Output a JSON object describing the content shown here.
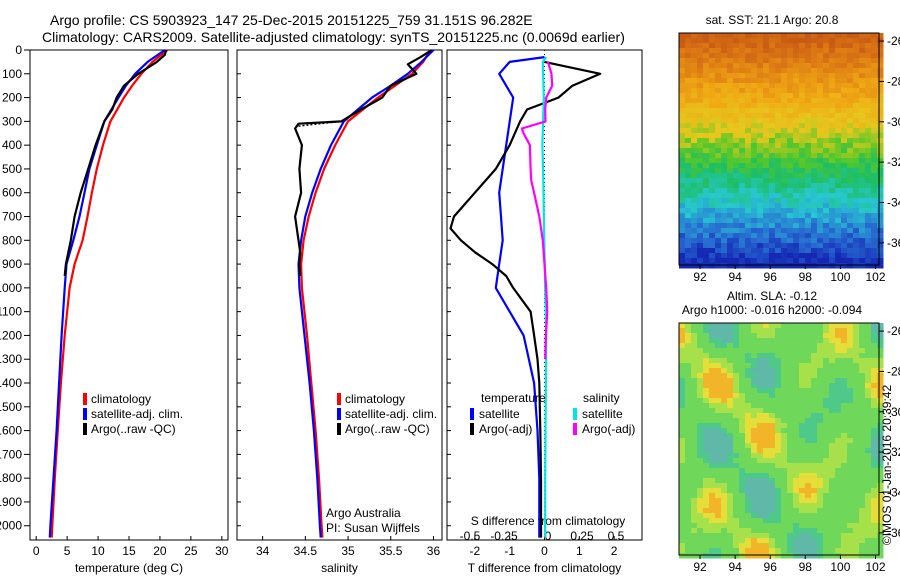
{
  "header": {
    "line1": "Argo profile: CS 5903923_147 25-Dec-2015 20151225_759 31.151S 96.282E",
    "line2": "Climatology: CARS2009. Satellite-adjusted climatology: synTS_20151225.nc (0.0069d earlier)"
  },
  "depth_ticks": [
    0,
    100,
    200,
    300,
    400,
    500,
    600,
    700,
    800,
    900,
    1000,
    1100,
    1200,
    1300,
    1400,
    1500,
    1600,
    1700,
    1800,
    1900,
    2000
  ],
  "colors": {
    "climatology": "#ff0000",
    "satellite": "#0000ff",
    "argo": "#000000",
    "sat_salinity": "#00e5e5",
    "argo_salinity": "#ff00ff"
  },
  "panels": {
    "temperature": {
      "xlabel": "temperature (deg C)",
      "xlim": [
        -1,
        31
      ],
      "xticks": [
        0,
        5,
        10,
        15,
        20,
        25,
        30
      ],
      "legend": [
        "climatology",
        "satellite-adj. clim.",
        "Argo(..raw -QC)"
      ]
    },
    "salinity": {
      "xlabel": "salinity",
      "xlim": [
        33.7,
        36.1
      ],
      "xticks": [
        34,
        34.5,
        35,
        35.5,
        36
      ],
      "legend": [
        "climatology",
        "satellite-adj. clim.",
        "Argo(..raw -QC)"
      ],
      "note1": "Argo Australia",
      "note2": "PI: Susan Wijffels"
    },
    "difference": {
      "xlabel": "T difference from climatology",
      "xlim": [
        -2.8,
        2.8
      ],
      "xticks": [
        -2,
        -1,
        0,
        1,
        2
      ],
      "top_title": "S difference from climatology",
      "sticks": [
        "-0.5",
        "-0.25",
        "0",
        "0.25",
        "0.5"
      ],
      "legend_title_t": "temperature",
      "legend_title_s": "salinity",
      "legend_t": [
        "satellite",
        "Argo(-adj)"
      ],
      "legend_s": [
        "satellite",
        "Argo(-adj)"
      ]
    }
  },
  "chart_data": [
    {
      "type": "line",
      "panel": "temperature",
      "y_axis": "depth",
      "series": [
        {
          "name": "climatology",
          "color": "#ff0000",
          "depth": [
            0,
            50,
            100,
            150,
            200,
            300,
            400,
            500,
            600,
            700,
            800,
            900,
            1000,
            1200,
            1400,
            1600,
            1800,
            2000,
            2050
          ],
          "values": [
            21.2,
            18.8,
            17.0,
            15.5,
            14.2,
            12.0,
            10.8,
            9.8,
            9.0,
            8.3,
            7.5,
            6.2,
            5.4,
            4.6,
            4.0,
            3.5,
            3.0,
            2.6,
            2.5
          ]
        },
        {
          "name": "satellite-adj. clim.",
          "color": "#0000ff",
          "depth": [
            0,
            50,
            100,
            150,
            200,
            300,
            400,
            500,
            600,
            700,
            800,
            900,
            1000,
            1200,
            1400,
            1600,
            1800,
            2000,
            2050
          ],
          "values": [
            20.8,
            18.0,
            16.0,
            14.5,
            13.3,
            11.0,
            9.8,
            8.6,
            7.8,
            7.0,
            6.0,
            4.9,
            4.6,
            4.1,
            3.7,
            3.3,
            2.8,
            2.3,
            2.2
          ]
        },
        {
          "name": "Argo(..raw -QC)",
          "color": "#000000",
          "depth": [
            0,
            20,
            50,
            100,
            150,
            200,
            250,
            300,
            400,
            500,
            600,
            700,
            800,
            900,
            950
          ],
          "values": [
            21.0,
            20.8,
            19.5,
            16.5,
            14.2,
            13.0,
            12.3,
            11.0,
            9.6,
            8.4,
            7.2,
            6.2,
            5.6,
            4.8,
            4.6
          ]
        }
      ]
    },
    {
      "type": "line",
      "panel": "salinity",
      "y_axis": "depth",
      "series": [
        {
          "name": "climatology",
          "color": "#ff0000",
          "depth": [
            0,
            50,
            100,
            150,
            200,
            300,
            400,
            500,
            600,
            700,
            800,
            900,
            1000,
            1200,
            1400,
            1600,
            1800,
            2000,
            2050
          ],
          "values": [
            35.96,
            35.88,
            35.75,
            35.55,
            35.35,
            35.0,
            34.85,
            34.72,
            34.62,
            34.54,
            34.48,
            34.45,
            34.46,
            34.52,
            34.57,
            34.62,
            34.66,
            34.69,
            34.7
          ]
        },
        {
          "name": "satellite-adj. clim.",
          "color": "#0000ff",
          "depth": [
            0,
            50,
            100,
            150,
            200,
            300,
            400,
            500,
            600,
            700,
            800,
            900,
            1000,
            1200,
            1400,
            1600,
            1800,
            2000,
            2050
          ],
          "values": [
            36.0,
            35.86,
            35.7,
            35.5,
            35.28,
            34.95,
            34.8,
            34.68,
            34.58,
            34.5,
            34.45,
            34.42,
            34.43,
            34.49,
            34.55,
            34.6,
            34.64,
            34.67,
            34.68
          ]
        },
        {
          "name": "Argo(..raw -QC)",
          "color": "#000000",
          "depth": [
            0,
            30,
            60,
            100,
            150,
            200,
            250,
            300,
            310,
            330,
            400,
            500,
            600,
            700,
            800,
            850,
            900,
            950
          ],
          "values": [
            35.98,
            35.85,
            35.7,
            35.8,
            35.5,
            35.4,
            35.15,
            34.92,
            34.42,
            34.38,
            34.46,
            34.43,
            34.45,
            34.38,
            34.42,
            34.44,
            34.43,
            34.44
          ]
        }
      ]
    },
    {
      "type": "line",
      "panel": "difference",
      "y_axis": "depth",
      "series": [
        {
          "name": "T satellite",
          "color": "#0000ff",
          "depth": [
            30,
            50,
            100,
            150,
            200,
            300,
            400,
            500,
            600,
            700,
            800,
            900,
            1000,
            1100,
            1200,
            1400,
            1600,
            1800,
            2000,
            2050
          ],
          "values": [
            0.0,
            -1.0,
            -1.3,
            -1.1,
            -0.9,
            -1.0,
            -1.1,
            -1.2,
            -1.3,
            -1.25,
            -1.2,
            -1.3,
            -1.4,
            -1.0,
            -0.6,
            -0.3,
            -0.2,
            -0.15,
            -0.15,
            -0.15
          ]
        },
        {
          "name": "T Argo(-adj)",
          "color": "#000000",
          "depth": [
            50,
            100,
            150,
            200,
            250,
            300,
            400,
            500,
            600,
            650,
            700,
            750,
            800,
            850,
            900,
            950,
            1000,
            1100,
            1200,
            1300,
            1400,
            1600,
            1800,
            2000,
            2050
          ],
          "values": [
            0.0,
            1.6,
            0.8,
            0.4,
            -0.5,
            -0.7,
            -1.0,
            -1.4,
            -2.0,
            -2.3,
            -2.6,
            -2.7,
            -2.4,
            -2.0,
            -1.5,
            -1.1,
            -0.9,
            -0.4,
            -0.3,
            -0.2,
            -0.15,
            -0.12,
            -0.1,
            -0.1,
            -0.1
          ]
        },
        {
          "name": "S satellite",
          "color": "#00e5e5",
          "depth": [
            30,
            50,
            100,
            150,
            200,
            300,
            400,
            500,
            600,
            700,
            800,
            900,
            1000,
            1200,
            1400,
            1600,
            1800,
            2000,
            2050
          ],
          "values": [
            0.05,
            -0.05,
            -0.04,
            -0.03,
            -0.02,
            -0.04,
            -0.06,
            -0.04,
            -0.03,
            -0.02,
            -0.01,
            0.01,
            0.02,
            0.05,
            0.04,
            0.03,
            0.02,
            0.02,
            0.02
          ]
        },
        {
          "name": "S Argo(-adj)",
          "color": "#ff00ff",
          "depth": [
            50,
            100,
            150,
            200,
            250,
            300,
            330,
            350,
            400,
            500,
            550,
            600,
            700,
            800,
            900,
            1000,
            1100,
            1200,
            1300
          ],
          "values": [
            0.1,
            0.2,
            0.22,
            0.05,
            0.02,
            0.03,
            -0.65,
            -0.6,
            -0.42,
            -0.4,
            -0.38,
            -0.3,
            -0.15,
            -0.05,
            0.0,
            0.05,
            0.08,
            0.04,
            0.02
          ]
        }
      ]
    },
    {
      "type": "heatmap",
      "panel": "map-sst",
      "title": "sat. SST: 21.1  Argo: 20.8",
      "xticks": [
        92,
        94,
        96,
        98,
        100,
        102
      ],
      "yticks": [
        -26,
        -28,
        -30,
        -32,
        -34,
        -36
      ],
      "xlim": [
        90.8,
        102.2
      ],
      "ylim": [
        -37.1,
        -25.6
      ]
    },
    {
      "type": "heatmap",
      "panel": "map-sla",
      "title": "Altim. SLA: -0.12",
      "subtitle": "Argo h1000: -0.016 h2000: -0.094",
      "xticks": [
        92,
        94,
        96,
        98,
        100,
        102
      ],
      "yticks": [
        -26,
        -28,
        -30,
        -32,
        -34,
        -36
      ],
      "xlim": [
        90.8,
        102.2
      ],
      "ylim": [
        -37.1,
        -25.6
      ]
    }
  ],
  "side_text": "©IMOS 01-Jan-2016 20:39:42"
}
